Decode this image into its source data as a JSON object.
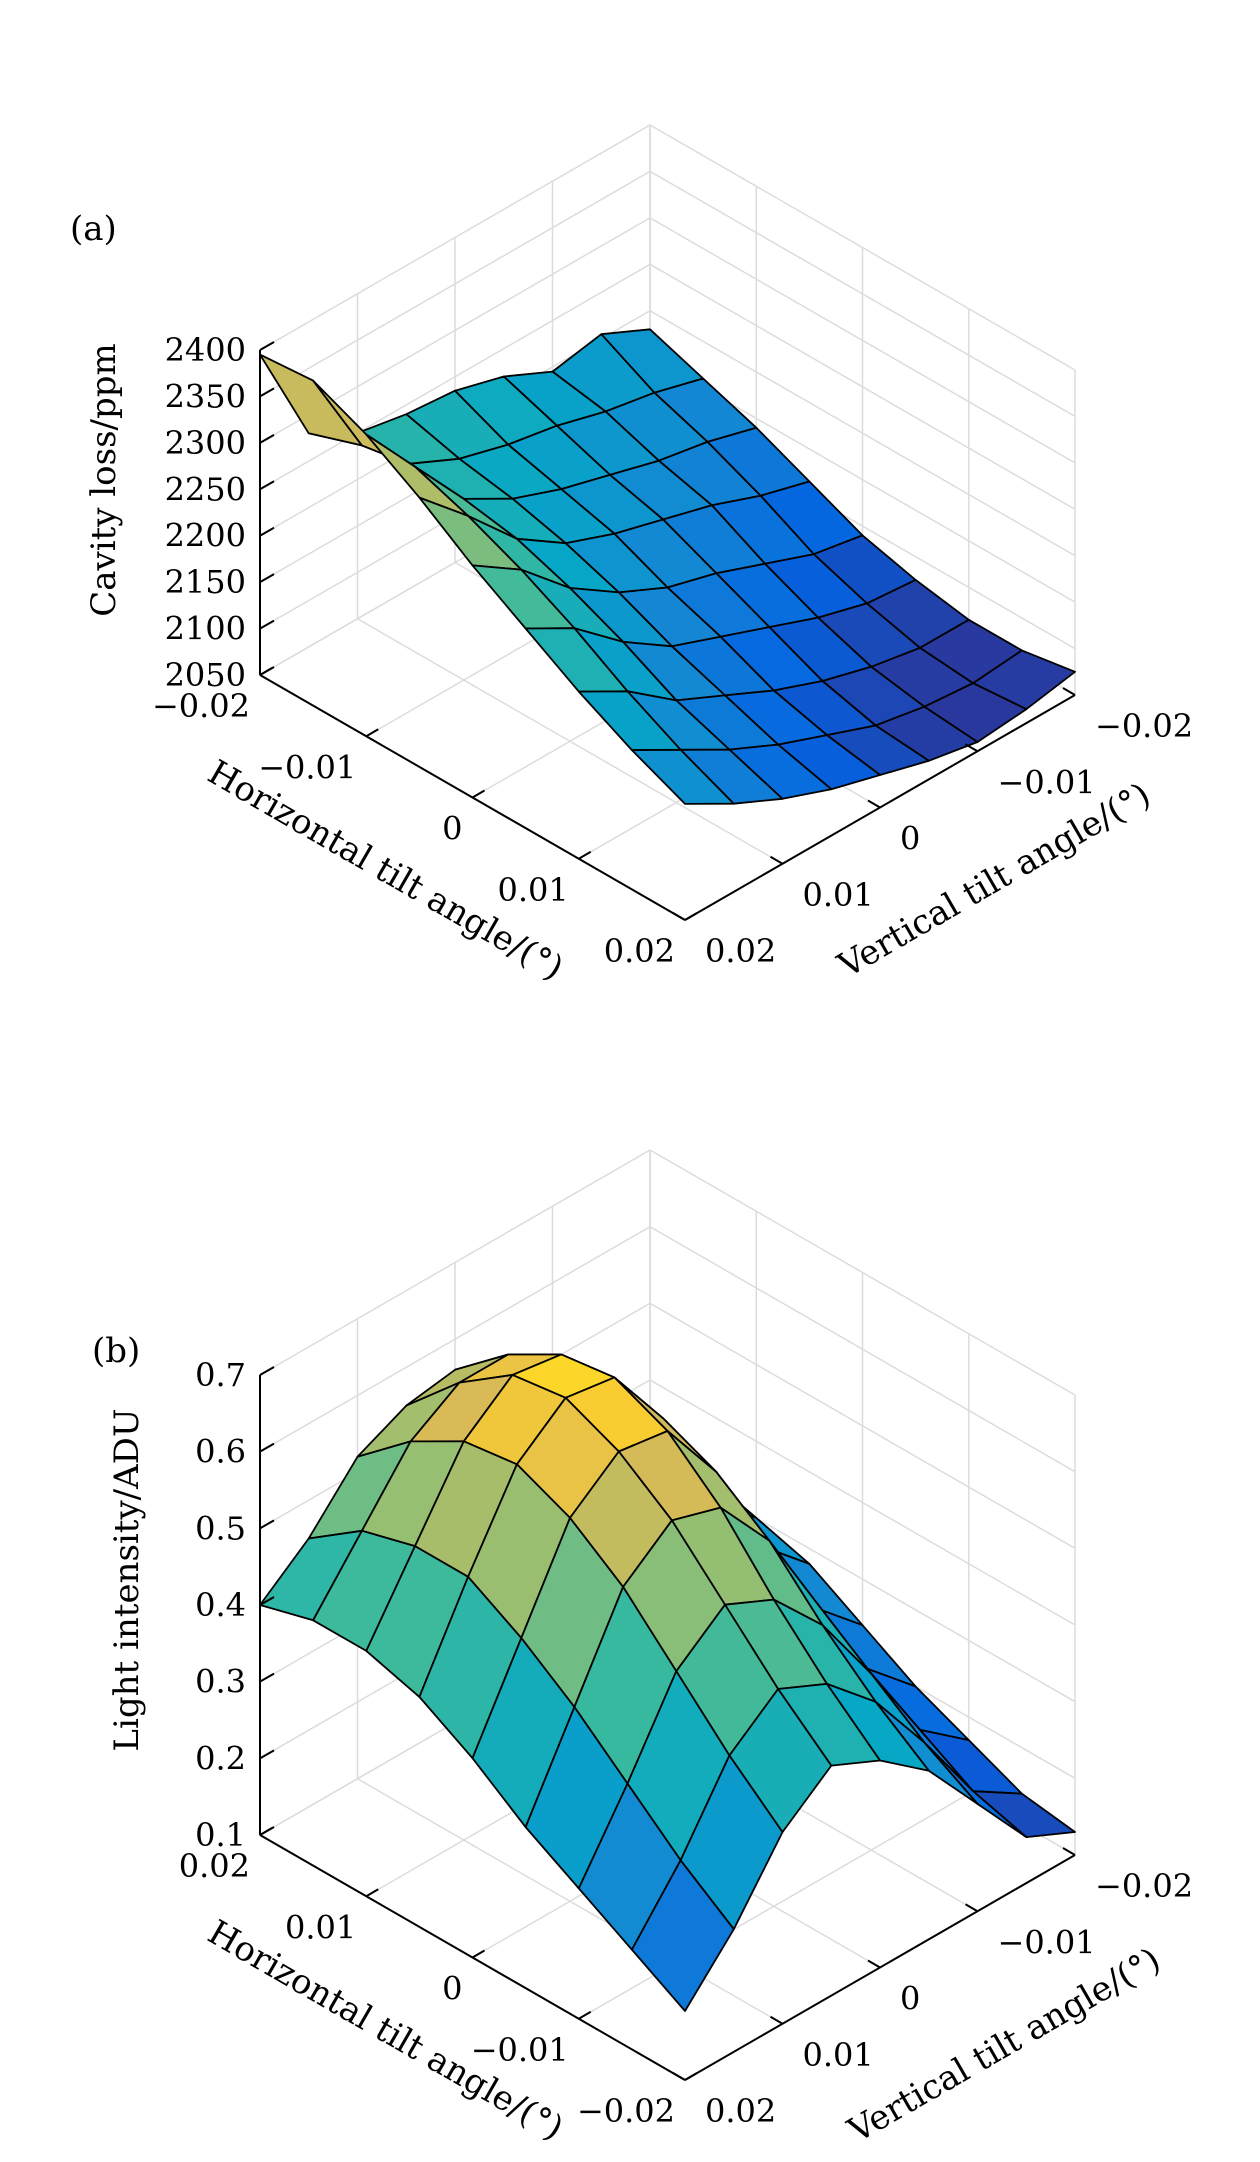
{
  "figure": {
    "panels": [
      "(a)",
      "(b)"
    ]
  },
  "chart_data": [
    {
      "type": "surface3d",
      "panel_label": "(a)",
      "xlabel": "Horizontal tilt angle/(°)",
      "ylabel": "Vertical tilt angle/(°)",
      "zlabel": "Cavity loss/ppm",
      "xlim": [
        -0.02,
        0.02
      ],
      "ylim": [
        -0.02,
        0.02
      ],
      "zlim": [
        2050,
        2400
      ],
      "x_ticks": [
        -0.02,
        -0.01,
        0,
        0.01,
        0.02
      ],
      "y_ticks": [
        -0.02,
        -0.01,
        0,
        0.01,
        0.02
      ],
      "z_ticks": [
        2050,
        2100,
        2150,
        2200,
        2250,
        2300,
        2350,
        2400
      ],
      "x_tick_labels": [
        "−0.02",
        "−0.01",
        "0",
        "0.01",
        "0.02"
      ],
      "y_tick_labels": [
        "−0.02",
        "−0.01",
        "0",
        "0.01",
        "0.02"
      ],
      "z_tick_labels": [
        "2050",
        "2100",
        "2150",
        "2200",
        "2250",
        "2300",
        "2350",
        "2400"
      ],
      "x_axis_side": "left-front",
      "y_axis_side": "right-front",
      "grid": true,
      "colormap": "parula",
      "x": [
        -0.02,
        -0.015,
        -0.01,
        -0.005,
        0,
        0.005,
        0.01,
        0.015,
        0.02
      ],
      "y": [
        -0.02,
        -0.015,
        -0.01,
        -0.005,
        0,
        0.005,
        0.01,
        0.015,
        0.02
      ],
      "z": [
        [
          2180,
          2205,
          2195,
          2220,
          2235,
          2240,
          2250,
          2280,
          2395
        ],
        [
          2160,
          2175,
          2185,
          2200,
          2210,
          2225,
          2250,
          2300,
          2400
        ],
        [
          2140,
          2155,
          2165,
          2180,
          2195,
          2215,
          2245,
          2310,
          2375
        ],
        [
          2115,
          2130,
          2150,
          2165,
          2180,
          2200,
          2235,
          2290,
          2340
        ],
        [
          2090,
          2100,
          2120,
          2140,
          2155,
          2180,
          2215,
          2265,
          2300
        ],
        [
          2075,
          2080,
          2095,
          2115,
          2135,
          2155,
          2190,
          2235,
          2265
        ],
        [
          2065,
          2065,
          2075,
          2090,
          2110,
          2135,
          2160,
          2200,
          2230
        ],
        [
          2065,
          2060,
          2065,
          2075,
          2095,
          2115,
          2140,
          2170,
          2200
        ],
        [
          2075,
          2065,
          2060,
          2070,
          2085,
          2100,
          2120,
          2145,
          2175
        ]
      ]
    },
    {
      "type": "surface3d",
      "panel_label": "(b)",
      "xlabel": "Horizontal tilt angle/(°)",
      "ylabel": "Vertical tilt angle/(°)",
      "zlabel": "Light intensity/ADU",
      "xlim": [
        -0.02,
        0.02
      ],
      "ylim": [
        -0.02,
        0.02
      ],
      "zlim": [
        0.1,
        0.7
      ],
      "x_ticks": [
        0.02,
        0.01,
        0,
        -0.01,
        -0.02
      ],
      "y_ticks": [
        -0.02,
        -0.01,
        0,
        0.01,
        0.02
      ],
      "z_ticks": [
        0.1,
        0.2,
        0.3,
        0.4,
        0.5,
        0.6,
        0.7
      ],
      "x_tick_labels": [
        "0.02",
        "0.01",
        "0",
        "−0.01",
        "−0.02"
      ],
      "y_tick_labels": [
        "−0.02",
        "−0.01",
        "0",
        "0.01",
        "0.02"
      ],
      "z_tick_labels": [
        "0.1",
        "0.2",
        "0.3",
        "0.4",
        "0.5",
        "0.6",
        "0.7"
      ],
      "x_axis_side": "left-front",
      "y_axis_side": "right-front",
      "x_reversed": true,
      "grid": true,
      "colormap": "parula",
      "x": [
        0.02,
        0.015,
        0.01,
        0.005,
        0,
        -0.005,
        -0.01,
        -0.015,
        -0.02
      ],
      "y": [
        -0.02,
        -0.015,
        -0.01,
        -0.005,
        0,
        0.005,
        0.01,
        0.015,
        0.02
      ],
      "z": [
        [
          0.33,
          0.36,
          0.42,
          0.5,
          0.56,
          0.55,
          0.52,
          0.45,
          0.4
        ],
        [
          0.32,
          0.36,
          0.45,
          0.55,
          0.62,
          0.62,
          0.58,
          0.5,
          0.42
        ],
        [
          0.3,
          0.36,
          0.47,
          0.58,
          0.66,
          0.67,
          0.62,
          0.52,
          0.42
        ],
        [
          0.28,
          0.34,
          0.46,
          0.58,
          0.67,
          0.68,
          0.63,
          0.52,
          0.4
        ],
        [
          0.24,
          0.3,
          0.42,
          0.55,
          0.64,
          0.65,
          0.6,
          0.48,
          0.36
        ],
        [
          0.2,
          0.26,
          0.38,
          0.5,
          0.58,
          0.6,
          0.55,
          0.43,
          0.31
        ],
        [
          0.17,
          0.22,
          0.33,
          0.43,
          0.5,
          0.53,
          0.48,
          0.37,
          0.27
        ],
        [
          0.14,
          0.18,
          0.28,
          0.37,
          0.43,
          0.46,
          0.41,
          0.31,
          0.23
        ],
        [
          0.13,
          0.16,
          0.24,
          0.32,
          0.37,
          0.4,
          0.35,
          0.26,
          0.19
        ]
      ]
    }
  ]
}
